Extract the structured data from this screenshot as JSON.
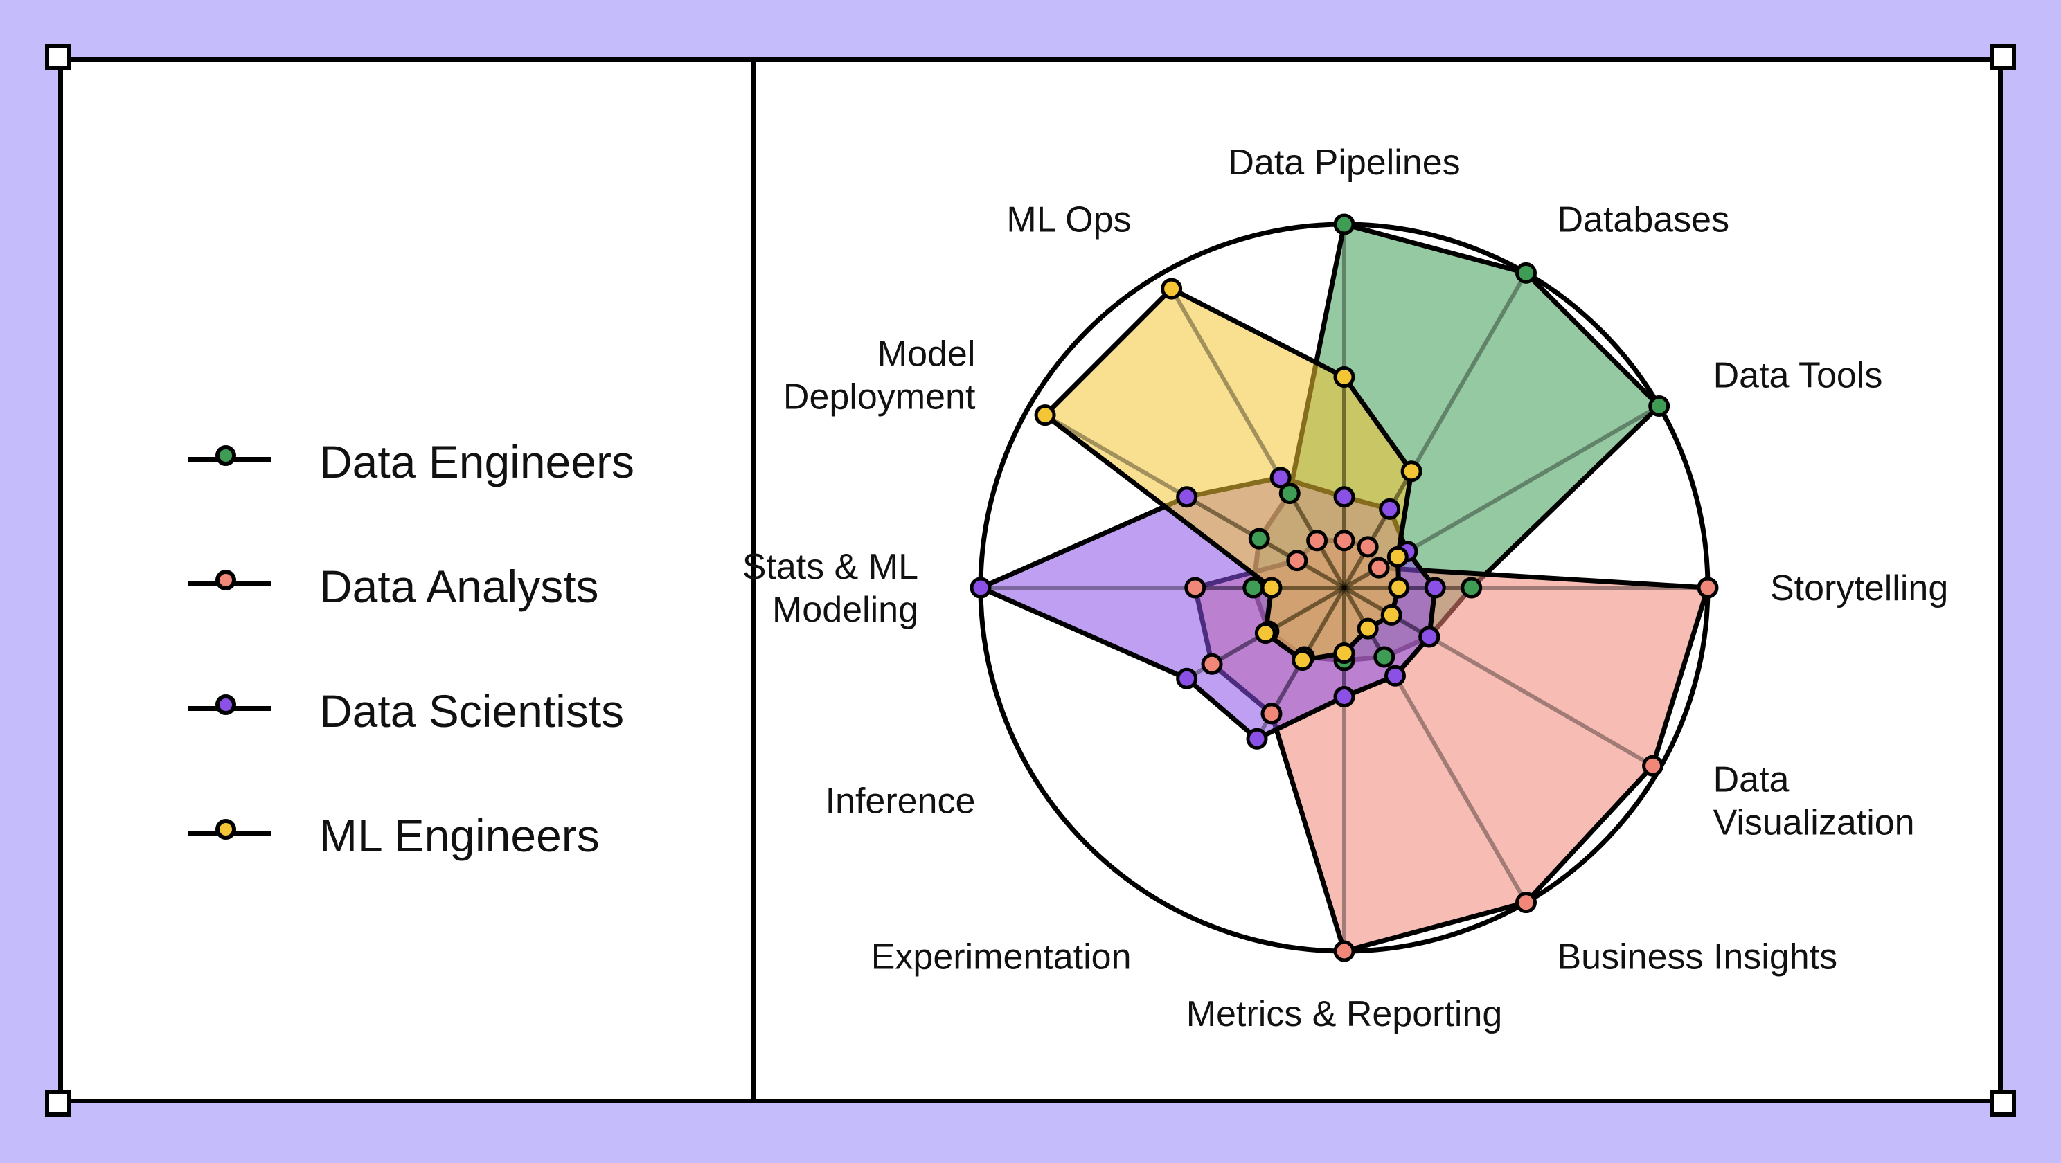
{
  "legend": [
    {
      "name": "Data Engineers",
      "color": "#3e9c54"
    },
    {
      "name": "Data Analysts",
      "color": "#f08779"
    },
    {
      "name": "Data Scientists",
      "color": "#8b50e6"
    },
    {
      "name": "ML Engineers",
      "color": "#f4c534"
    }
  ],
  "chart_data": {
    "type": "radar",
    "axes": [
      "Data Pipelines",
      "Databases",
      "Data Tools",
      "Storytelling",
      "Data Visualization",
      "Business Insights",
      "Metrics & Reporting",
      "Experimentation",
      "Inference",
      "Stats & ML Modeling",
      "Model Deployment",
      "ML Ops"
    ],
    "axis_label_lines": [
      [
        "Data Pipelines"
      ],
      [
        "Databases"
      ],
      [
        "Data Tools"
      ],
      [
        "Storytelling"
      ],
      [
        "Data",
        "Visualization"
      ],
      [
        "Business Insights"
      ],
      [
        "Metrics & Reporting"
      ],
      [
        "Experimentation"
      ],
      [
        "Inference"
      ],
      [
        "Stats & ML",
        "Modeling"
      ],
      [
        "Model",
        "Deployment"
      ],
      [
        "ML Ops"
      ]
    ],
    "range": [
      0,
      1
    ],
    "series": [
      {
        "name": "Data Engineers",
        "values": [
          1.0,
          1.0,
          1.0,
          0.35,
          0.27,
          0.22,
          0.2,
          0.22,
          0.24,
          0.25,
          0.27,
          0.3
        ]
      },
      {
        "name": "Data Analysts",
        "values": [
          0.13,
          0.13,
          0.11,
          1.0,
          0.98,
          1.0,
          1.0,
          0.4,
          0.42,
          0.41,
          0.15,
          0.15
        ]
      },
      {
        "name": "Data Scientists",
        "values": [
          0.25,
          0.25,
          0.2,
          0.25,
          0.27,
          0.28,
          0.3,
          0.48,
          0.5,
          1.0,
          0.5,
          0.35
        ]
      },
      {
        "name": "ML Engineers",
        "values": [
          0.58,
          0.37,
          0.17,
          0.15,
          0.15,
          0.13,
          0.18,
          0.23,
          0.25,
          0.2,
          0.95,
          0.95
        ]
      }
    ],
    "grid": "outer circle only",
    "legend_position": "left"
  }
}
